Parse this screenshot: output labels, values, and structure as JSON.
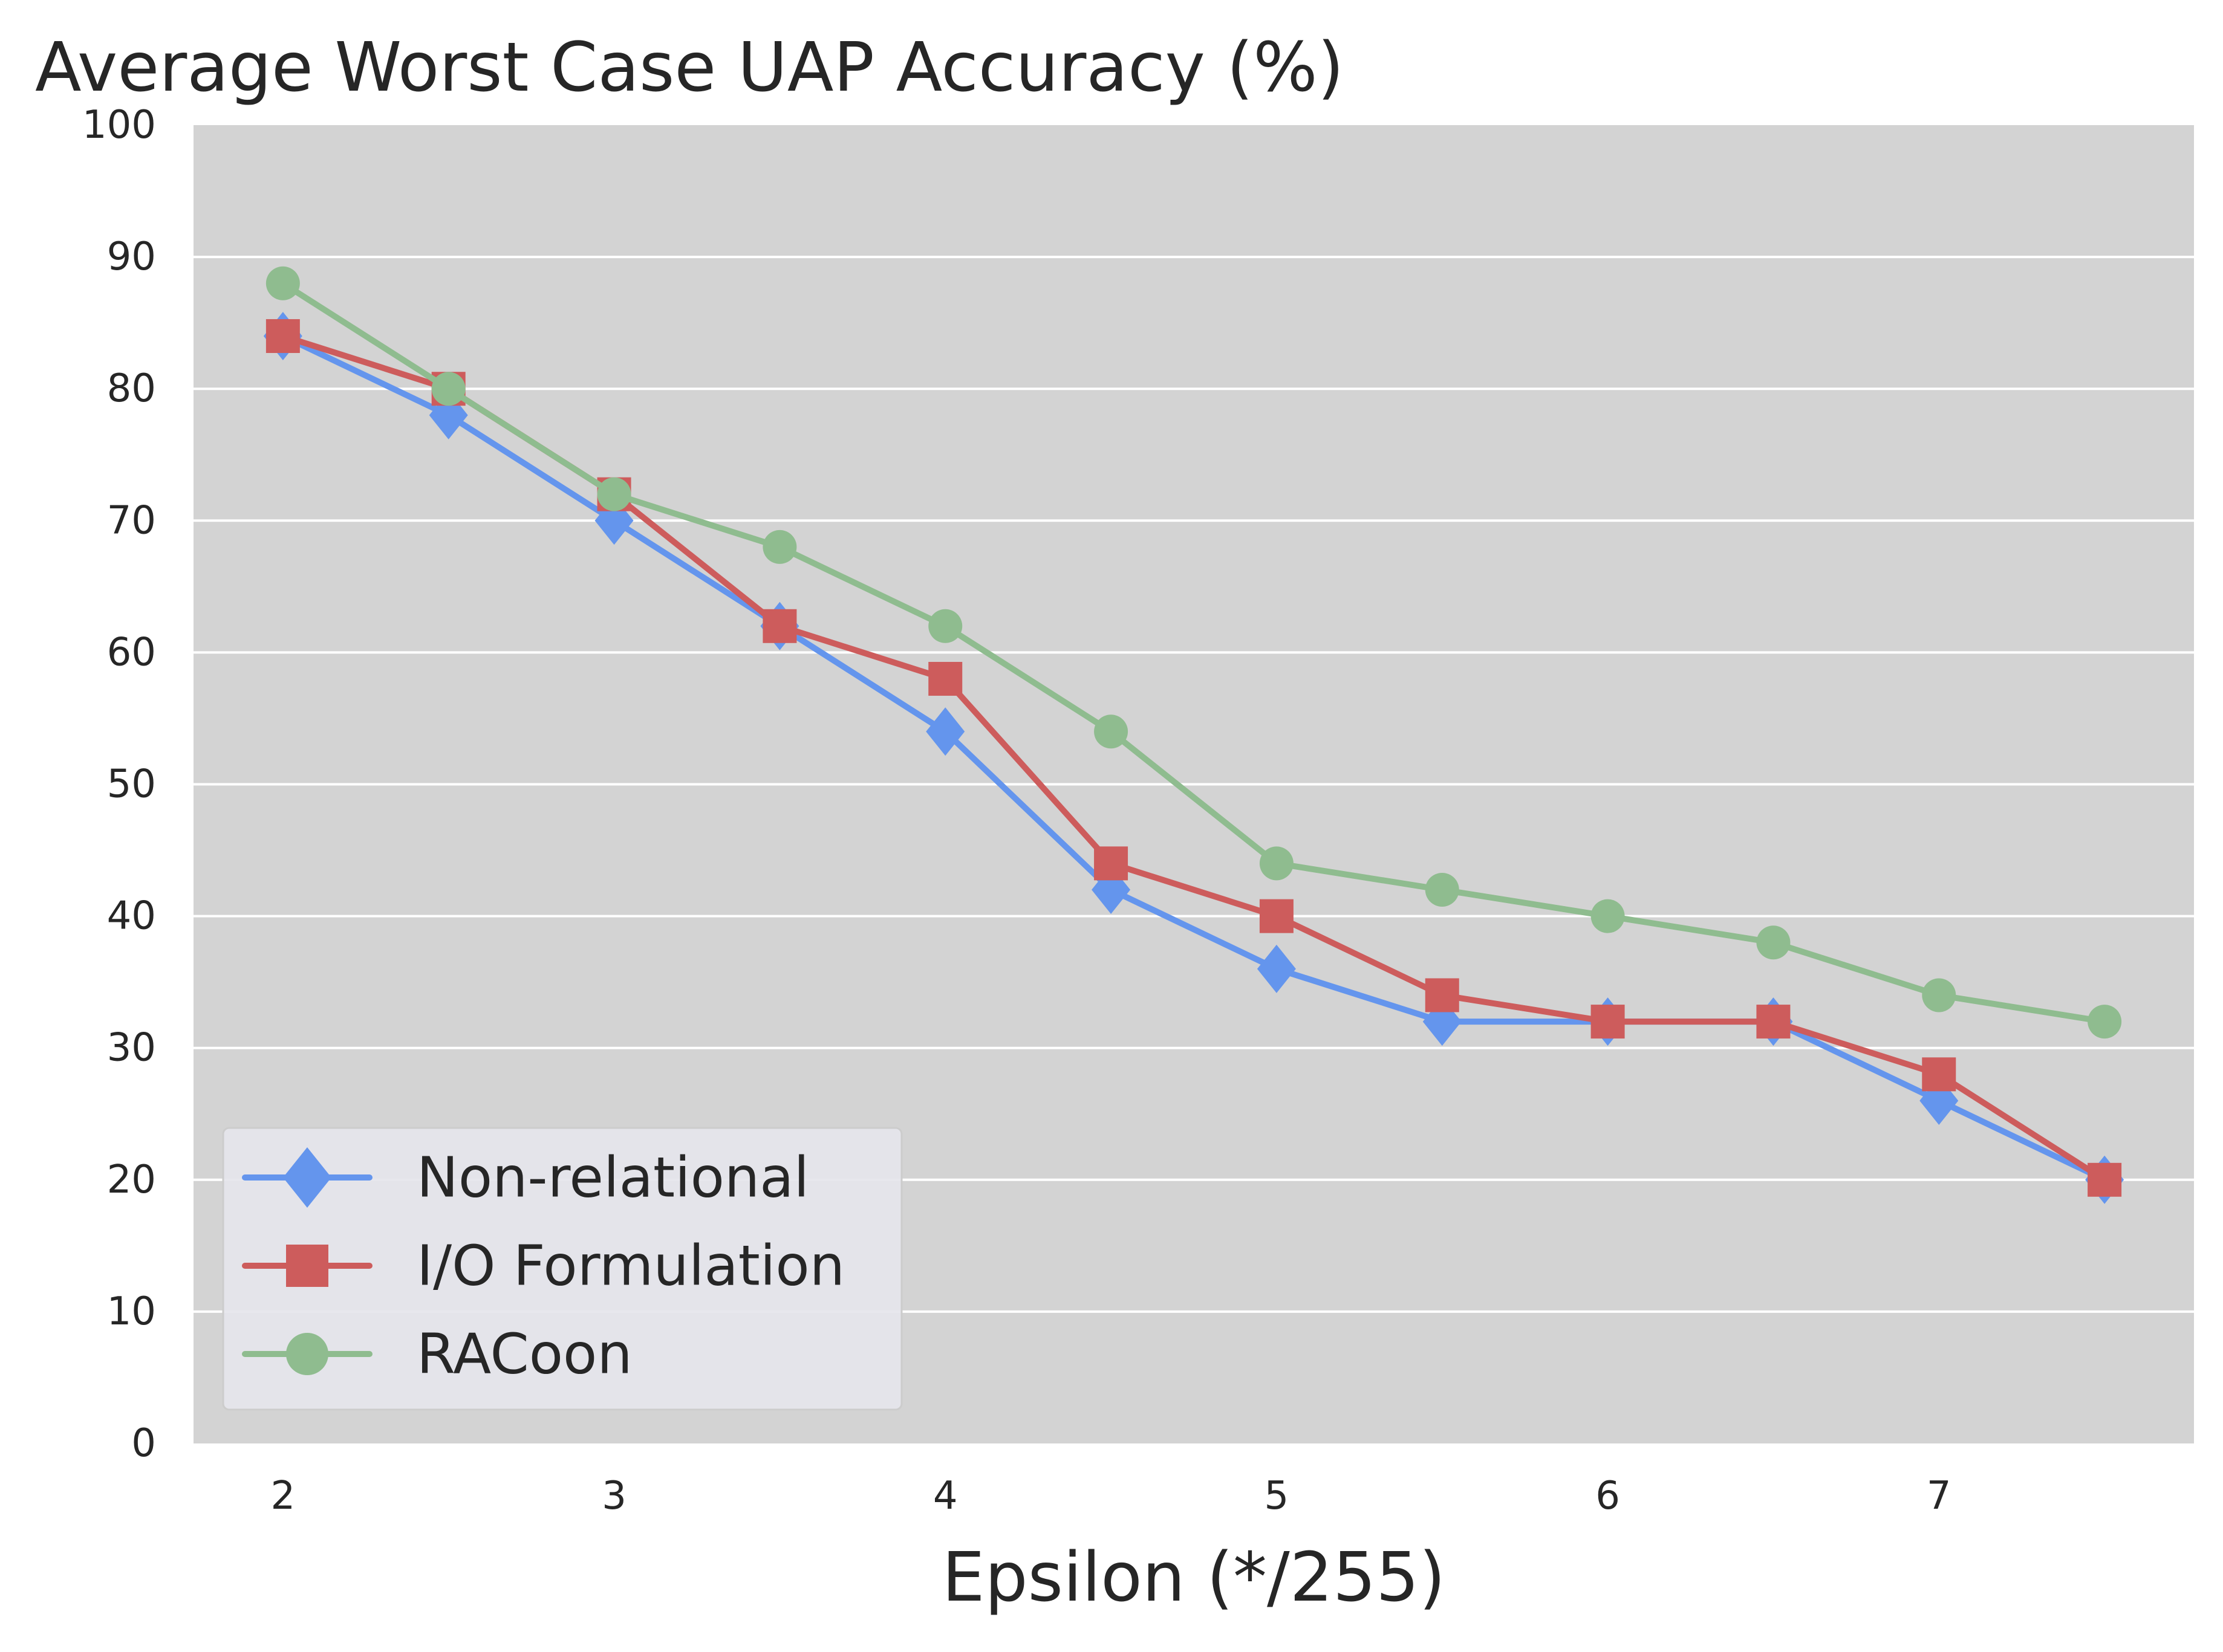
{
  "chart_data": {
    "type": "line",
    "title": "Average Worst Case UAP Accuracy (%)",
    "xlabel": "Epsilon (*/255)",
    "ylabel": "",
    "x": [
      2,
      2.5,
      3,
      3.5,
      4,
      4.5,
      5,
      5.5,
      6,
      6.5,
      7,
      7.5
    ],
    "xticks": [
      "2",
      "3",
      "4",
      "5",
      "6",
      "7"
    ],
    "xtick_values": [
      2,
      3,
      4,
      5,
      6,
      7
    ],
    "yticks": [
      "0",
      "10",
      "20",
      "30",
      "40",
      "50",
      "60",
      "70",
      "80",
      "90",
      "100"
    ],
    "ytick_values": [
      0,
      10,
      20,
      30,
      40,
      50,
      60,
      70,
      80,
      90,
      100
    ],
    "xlim": [
      1.73,
      7.77
    ],
    "ylim": [
      0,
      100
    ],
    "grid": true,
    "legend_position": "lower-left",
    "series": [
      {
        "name": "Non-relational",
        "color": "#6495ED",
        "marker": "diamond",
        "values": [
          84,
          78,
          70,
          62,
          54,
          42,
          36,
          32,
          32,
          32,
          26,
          20
        ]
      },
      {
        "name": "I/O Formulation",
        "color": "#CD5C5C",
        "marker": "square",
        "values": [
          84,
          80,
          72,
          62,
          58,
          44,
          40,
          34,
          32,
          32,
          28,
          20
        ]
      },
      {
        "name": "RACoon",
        "color": "#8FBC8F",
        "marker": "circle",
        "values": [
          88,
          80,
          72,
          68,
          62,
          54,
          44,
          42,
          40,
          38,
          34,
          32
        ]
      }
    ]
  }
}
